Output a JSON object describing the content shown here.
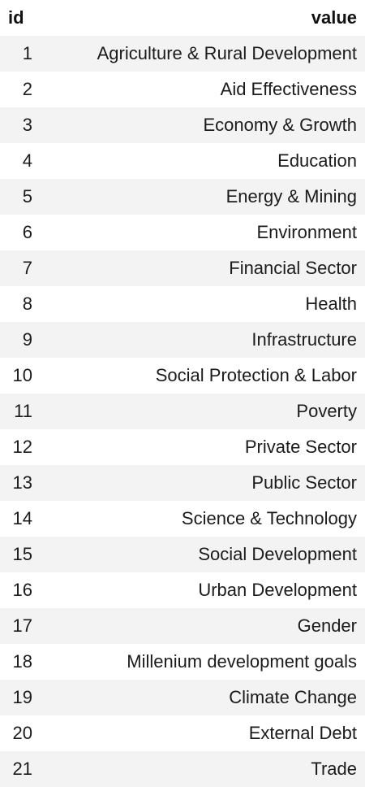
{
  "table": {
    "columns": [
      "id",
      "value"
    ],
    "rows": [
      {
        "id": "1",
        "value": "Agriculture & Rural Development"
      },
      {
        "id": "2",
        "value": "Aid Effectiveness"
      },
      {
        "id": "3",
        "value": "Economy & Growth"
      },
      {
        "id": "4",
        "value": "Education"
      },
      {
        "id": "5",
        "value": "Energy & Mining"
      },
      {
        "id": "6",
        "value": "Environment"
      },
      {
        "id": "7",
        "value": "Financial Sector"
      },
      {
        "id": "8",
        "value": "Health"
      },
      {
        "id": "9",
        "value": "Infrastructure"
      },
      {
        "id": "10",
        "value": "Social Protection & Labor"
      },
      {
        "id": "11",
        "value": "Poverty"
      },
      {
        "id": "12",
        "value": "Private Sector"
      },
      {
        "id": "13",
        "value": "Public Sector"
      },
      {
        "id": "14",
        "value": "Science & Technology"
      },
      {
        "id": "15",
        "value": "Social Development"
      },
      {
        "id": "16",
        "value": "Urban Development"
      },
      {
        "id": "17",
        "value": "Gender"
      },
      {
        "id": "18",
        "value": "Millenium development goals"
      },
      {
        "id": "19",
        "value": "Climate Change"
      },
      {
        "id": "20",
        "value": "External Debt"
      },
      {
        "id": "21",
        "value": "Trade"
      }
    ]
  }
}
